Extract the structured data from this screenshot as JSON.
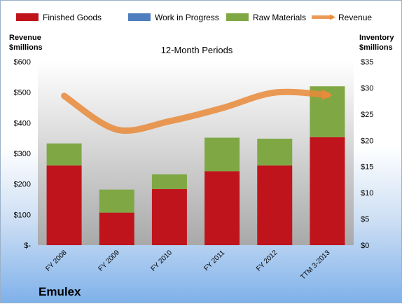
{
  "chart_data": {
    "type": "bar",
    "subtitle": "12-Month Periods",
    "brand": "Emulex",
    "left_axis_label": [
      "Revenue",
      "$millions"
    ],
    "right_axis_label": [
      "Inventory",
      "$millions"
    ],
    "categories": [
      "FY 2008",
      "FY 2009",
      "FY 2010",
      "FY 2011",
      "FY 2012",
      "TTM 3-2013"
    ],
    "left_ticks": [
      "$-",
      "$100",
      "$200",
      "$300",
      "$400",
      "$500",
      "$600"
    ],
    "right_ticks": [
      "$0",
      "$5",
      "$10",
      "$15",
      "$20",
      "$25",
      "$30",
      "$35"
    ],
    "left_ylim": [
      0,
      600
    ],
    "right_ylim": [
      0,
      35
    ],
    "legend_position": "top",
    "series": [
      {
        "name": "Finished Goods",
        "color": "#c0141c",
        "values": [
          15.2,
          6.2,
          10.7,
          14.1,
          15.2,
          20.6
        ]
      },
      {
        "name": "Work in Progress",
        "color": "#4f7fbf",
        "values": [
          0,
          0,
          0,
          0,
          0,
          0
        ]
      },
      {
        "name": "Raw Materials",
        "color": "#7fa844",
        "values": [
          4.2,
          4.4,
          2.8,
          6.4,
          5.1,
          9.7
        ]
      },
      {
        "name": "Revenue",
        "color": "#e98a3a",
        "values": [
          488,
          378,
          405,
          448,
          499,
          491
        ]
      }
    ]
  }
}
